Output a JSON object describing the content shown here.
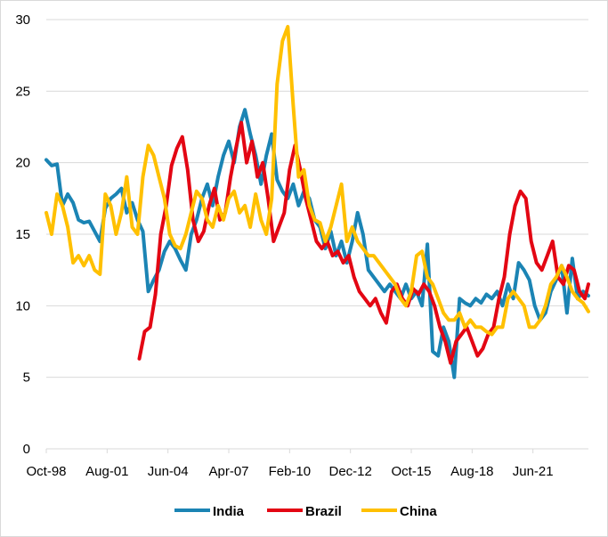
{
  "chart_data": {
    "type": "line",
    "title": "",
    "xlabel": "",
    "ylabel": "",
    "ylim": [
      0,
      30
    ],
    "yticks": [
      0,
      5,
      10,
      15,
      20,
      25,
      30
    ],
    "xlim": [
      "Oct-98",
      "Jan-24"
    ],
    "xticks": [
      "Oct-98",
      "Aug-01",
      "Jun-04",
      "Apr-07",
      "Feb-10",
      "Dec-12",
      "Oct-15",
      "Aug-18",
      "Jun-21"
    ],
    "grid": "horizontal",
    "legend_position": "bottom",
    "series": [
      {
        "name": "India",
        "color": "#1B84B4",
        "points": [
          [
            "Oct-98",
            20.2
          ],
          [
            "Jan-99",
            19.8
          ],
          [
            "Apr-99",
            19.9
          ],
          [
            "Jul-99",
            17.0
          ],
          [
            "Oct-99",
            17.8
          ],
          [
            "Jan-00",
            17.2
          ],
          [
            "Apr-00",
            16.0
          ],
          [
            "Jul-00",
            15.8
          ],
          [
            "Oct-00",
            15.9
          ],
          [
            "Jan-01",
            15.2
          ],
          [
            "Apr-01",
            14.5
          ],
          [
            "Jul-01",
            16.8
          ],
          [
            "Oct-01",
            17.5
          ],
          [
            "Jan-02",
            17.8
          ],
          [
            "Apr-02",
            18.2
          ],
          [
            "Jul-02",
            16.5
          ],
          [
            "Oct-02",
            17.2
          ],
          [
            "Jan-03",
            16.0
          ],
          [
            "Apr-03",
            15.2
          ],
          [
            "Jul-03",
            11.0
          ],
          [
            "Oct-03",
            11.8
          ],
          [
            "Jan-04",
            12.5
          ],
          [
            "Apr-04",
            13.8
          ],
          [
            "Jul-04",
            14.5
          ],
          [
            "Oct-04",
            14.0
          ],
          [
            "Jan-05",
            13.2
          ],
          [
            "Apr-05",
            12.5
          ],
          [
            "Jul-05",
            15.0
          ],
          [
            "Oct-05",
            16.0
          ],
          [
            "Jan-06",
            17.5
          ],
          [
            "Apr-06",
            18.5
          ],
          [
            "Jul-06",
            17.0
          ],
          [
            "Oct-06",
            19.0
          ],
          [
            "Jan-07",
            20.5
          ],
          [
            "Apr-07",
            21.5
          ],
          [
            "Jul-07",
            20.0
          ],
          [
            "Oct-07",
            22.5
          ],
          [
            "Jan-08",
            23.7
          ],
          [
            "Apr-08",
            22.0
          ],
          [
            "Jul-08",
            20.5
          ],
          [
            "Oct-08",
            18.5
          ],
          [
            "Jan-09",
            20.5
          ],
          [
            "Apr-09",
            22.0
          ],
          [
            "Jul-09",
            18.8
          ],
          [
            "Oct-09",
            18.0
          ],
          [
            "Jan-10",
            17.5
          ],
          [
            "Apr-10",
            18.5
          ],
          [
            "Jul-10",
            17.0
          ],
          [
            "Oct-10",
            18.0
          ],
          [
            "Jan-11",
            17.5
          ],
          [
            "Apr-11",
            16.0
          ],
          [
            "Jul-11",
            15.5
          ],
          [
            "Oct-11",
            14.0
          ],
          [
            "Jan-12",
            15.2
          ],
          [
            "Apr-12",
            13.5
          ],
          [
            "Jul-12",
            14.5
          ],
          [
            "Oct-12",
            13.0
          ],
          [
            "Jan-13",
            14.5
          ],
          [
            "Apr-13",
            16.5
          ],
          [
            "Jul-13",
            15.0
          ],
          [
            "Oct-13",
            12.5
          ],
          [
            "Jan-14",
            12.0
          ],
          [
            "Apr-14",
            11.5
          ],
          [
            "Jul-14",
            11.0
          ],
          [
            "Oct-14",
            11.5
          ],
          [
            "Jan-15",
            11.0
          ],
          [
            "Apr-15",
            10.5
          ],
          [
            "Jul-15",
            11.5
          ],
          [
            "Oct-15",
            10.5
          ],
          [
            "Jan-16",
            11.0
          ],
          [
            "Apr-16",
            10.0
          ],
          [
            "Jul-16",
            14.3
          ],
          [
            "Oct-16",
            6.8
          ],
          [
            "Jan-17",
            6.5
          ],
          [
            "Apr-17",
            8.5
          ],
          [
            "Jul-17",
            7.5
          ],
          [
            "Oct-17",
            5.0
          ],
          [
            "Jan-18",
            10.5
          ],
          [
            "Apr-18",
            10.2
          ],
          [
            "Jul-18",
            10.0
          ],
          [
            "Oct-18",
            10.5
          ],
          [
            "Jan-19",
            10.2
          ],
          [
            "Apr-19",
            10.8
          ],
          [
            "Jul-19",
            10.5
          ],
          [
            "Oct-19",
            11.0
          ],
          [
            "Jan-20",
            10.0
          ],
          [
            "Apr-20",
            11.5
          ],
          [
            "Jul-20",
            10.5
          ],
          [
            "Oct-20",
            13.0
          ],
          [
            "Jan-21",
            12.5
          ],
          [
            "Apr-21",
            11.8
          ],
          [
            "Jul-21",
            10.0
          ],
          [
            "Oct-21",
            9.0
          ],
          [
            "Jan-22",
            9.5
          ],
          [
            "Apr-22",
            11.0
          ],
          [
            "Jul-22",
            11.8
          ],
          [
            "Oct-22",
            12.8
          ],
          [
            "Jan-23",
            9.5
          ],
          [
            "Apr-23",
            13.3
          ],
          [
            "Jul-23",
            10.5
          ],
          [
            "Oct-23",
            11.0
          ],
          [
            "Jan-24",
            10.7
          ]
        ]
      },
      {
        "name": "Brazil",
        "color": "#E30613",
        "points": [
          [
            "Feb-03",
            6.3
          ],
          [
            "May-03",
            8.2
          ],
          [
            "Aug-03",
            8.5
          ],
          [
            "Nov-03",
            10.8
          ],
          [
            "Feb-04",
            15.0
          ],
          [
            "May-04",
            17.0
          ],
          [
            "Aug-04",
            19.8
          ],
          [
            "Nov-04",
            21.0
          ],
          [
            "Feb-05",
            21.8
          ],
          [
            "May-05",
            19.5
          ],
          [
            "Aug-05",
            16.0
          ],
          [
            "Nov-05",
            14.5
          ],
          [
            "Feb-06",
            15.2
          ],
          [
            "May-06",
            17.0
          ],
          [
            "Aug-06",
            18.2
          ],
          [
            "Nov-06",
            16.0
          ],
          [
            "Feb-07",
            16.5
          ],
          [
            "May-07",
            19.0
          ],
          [
            "Aug-07",
            21.0
          ],
          [
            "Nov-07",
            22.8
          ],
          [
            "Feb-08",
            20.0
          ],
          [
            "May-08",
            21.5
          ],
          [
            "Aug-08",
            19.0
          ],
          [
            "Nov-08",
            20.0
          ],
          [
            "Feb-09",
            17.5
          ],
          [
            "May-09",
            14.5
          ],
          [
            "Aug-09",
            15.5
          ],
          [
            "Nov-09",
            16.5
          ],
          [
            "Feb-10",
            19.5
          ],
          [
            "May-10",
            21.2
          ],
          [
            "Aug-10",
            19.5
          ],
          [
            "Nov-10",
            17.5
          ],
          [
            "Feb-11",
            16.0
          ],
          [
            "May-11",
            14.5
          ],
          [
            "Aug-11",
            14.0
          ],
          [
            "Nov-11",
            14.5
          ],
          [
            "Feb-12",
            13.5
          ],
          [
            "May-12",
            13.8
          ],
          [
            "Aug-12",
            13.0
          ],
          [
            "Nov-12",
            13.5
          ],
          [
            "Feb-13",
            12.0
          ],
          [
            "May-13",
            11.0
          ],
          [
            "Aug-13",
            10.5
          ],
          [
            "Nov-13",
            10.0
          ],
          [
            "Feb-14",
            10.5
          ],
          [
            "May-14",
            9.5
          ],
          [
            "Aug-14",
            8.8
          ],
          [
            "Nov-14",
            11.0
          ],
          [
            "Feb-15",
            11.5
          ],
          [
            "May-15",
            10.5
          ],
          [
            "Aug-15",
            10.0
          ],
          [
            "Nov-15",
            11.2
          ],
          [
            "Feb-16",
            10.8
          ],
          [
            "May-16",
            11.5
          ],
          [
            "Aug-16",
            11.0
          ],
          [
            "Nov-16",
            10.0
          ],
          [
            "Feb-17",
            8.5
          ],
          [
            "May-17",
            7.5
          ],
          [
            "Aug-17",
            6.0
          ],
          [
            "Nov-17",
            7.5
          ],
          [
            "Feb-18",
            8.0
          ],
          [
            "May-18",
            8.5
          ],
          [
            "Aug-18",
            7.5
          ],
          [
            "Nov-18",
            6.5
          ],
          [
            "Feb-19",
            7.0
          ],
          [
            "May-19",
            8.0
          ],
          [
            "Aug-19",
            8.5
          ],
          [
            "Nov-19",
            10.5
          ],
          [
            "Feb-20",
            12.0
          ],
          [
            "May-20",
            15.0
          ],
          [
            "Aug-20",
            17.0
          ],
          [
            "Nov-20",
            18.0
          ],
          [
            "Feb-21",
            17.5
          ],
          [
            "May-21",
            14.5
          ],
          [
            "Aug-21",
            13.0
          ],
          [
            "Nov-21",
            12.5
          ],
          [
            "Feb-22",
            13.5
          ],
          [
            "May-22",
            14.5
          ],
          [
            "Aug-22",
            12.0
          ],
          [
            "Nov-22",
            11.5
          ],
          [
            "Feb-23",
            12.8
          ],
          [
            "May-23",
            12.5
          ],
          [
            "Aug-23",
            11.0
          ],
          [
            "Nov-23",
            10.5
          ],
          [
            "Jan-24",
            11.5
          ]
        ]
      },
      {
        "name": "China",
        "color": "#FFC000",
        "points": [
          [
            "Oct-98",
            16.5
          ],
          [
            "Jan-99",
            15.0
          ],
          [
            "Apr-99",
            17.8
          ],
          [
            "Jul-99",
            17.0
          ],
          [
            "Oct-99",
            15.5
          ],
          [
            "Jan-00",
            13.0
          ],
          [
            "Apr-00",
            13.5
          ],
          [
            "Jul-00",
            12.8
          ],
          [
            "Oct-00",
            13.5
          ],
          [
            "Jan-01",
            12.5
          ],
          [
            "Apr-01",
            12.2
          ],
          [
            "Jul-01",
            17.8
          ],
          [
            "Oct-01",
            17.0
          ],
          [
            "Jan-02",
            15.0
          ],
          [
            "Apr-02",
            16.5
          ],
          [
            "Jul-02",
            19.0
          ],
          [
            "Oct-02",
            15.5
          ],
          [
            "Jan-03",
            15.0
          ],
          [
            "Apr-03",
            19.0
          ],
          [
            "Jul-03",
            21.2
          ],
          [
            "Oct-03",
            20.5
          ],
          [
            "Jan-04",
            19.0
          ],
          [
            "Apr-04",
            17.5
          ],
          [
            "Jul-04",
            15.0
          ],
          [
            "Oct-04",
            14.2
          ],
          [
            "Jan-05",
            14.0
          ],
          [
            "Apr-05",
            15.0
          ],
          [
            "Jul-05",
            16.5
          ],
          [
            "Oct-05",
            18.0
          ],
          [
            "Jan-06",
            17.5
          ],
          [
            "Apr-06",
            16.0
          ],
          [
            "Jul-06",
            15.5
          ],
          [
            "Oct-06",
            17.0
          ],
          [
            "Jan-07",
            16.0
          ],
          [
            "Apr-07",
            17.5
          ],
          [
            "Jul-07",
            18.0
          ],
          [
            "Oct-07",
            16.5
          ],
          [
            "Jan-08",
            17.0
          ],
          [
            "Apr-08",
            15.5
          ],
          [
            "Jul-08",
            17.8
          ],
          [
            "Oct-08",
            16.0
          ],
          [
            "Jan-09",
            15.0
          ],
          [
            "Apr-09",
            17.5
          ],
          [
            "Jul-09",
            25.5
          ],
          [
            "Oct-09",
            28.5
          ],
          [
            "Jan-10",
            29.5
          ],
          [
            "Apr-10",
            24.0
          ],
          [
            "Jul-10",
            19.0
          ],
          [
            "Oct-10",
            19.5
          ],
          [
            "Jan-11",
            17.0
          ],
          [
            "Apr-11",
            16.0
          ],
          [
            "Jul-11",
            15.8
          ],
          [
            "Oct-11",
            14.5
          ],
          [
            "Jan-12",
            15.5
          ],
          [
            "Apr-12",
            17.0
          ],
          [
            "Jul-12",
            18.5
          ],
          [
            "Oct-12",
            14.5
          ],
          [
            "Jan-13",
            15.5
          ],
          [
            "Apr-13",
            14.5
          ],
          [
            "Jul-13",
            14.0
          ],
          [
            "Oct-13",
            13.5
          ],
          [
            "Jan-14",
            13.5
          ],
          [
            "Apr-14",
            13.0
          ],
          [
            "Jul-14",
            12.5
          ],
          [
            "Oct-14",
            12.0
          ],
          [
            "Jan-15",
            11.5
          ],
          [
            "Apr-15",
            10.5
          ],
          [
            "Jul-15",
            10.0
          ],
          [
            "Oct-15",
            11.0
          ],
          [
            "Jan-16",
            13.5
          ],
          [
            "Apr-16",
            13.8
          ],
          [
            "Jul-16",
            12.0
          ],
          [
            "Oct-16",
            11.5
          ],
          [
            "Jan-17",
            10.5
          ],
          [
            "Apr-17",
            9.5
          ],
          [
            "Jul-17",
            9.0
          ],
          [
            "Oct-17",
            9.0
          ],
          [
            "Jan-18",
            9.5
          ],
          [
            "Apr-18",
            8.5
          ],
          [
            "Jul-18",
            9.0
          ],
          [
            "Oct-18",
            8.5
          ],
          [
            "Jan-19",
            8.5
          ],
          [
            "Apr-19",
            8.2
          ],
          [
            "Jul-19",
            8.0
          ],
          [
            "Oct-19",
            8.5
          ],
          [
            "Jan-20",
            8.5
          ],
          [
            "Apr-20",
            10.5
          ],
          [
            "Jul-20",
            11.0
          ],
          [
            "Oct-20",
            10.5
          ],
          [
            "Jan-21",
            10.0
          ],
          [
            "Apr-21",
            8.5
          ],
          [
            "Jul-21",
            8.5
          ],
          [
            "Oct-21",
            9.0
          ],
          [
            "Jan-22",
            10.0
          ],
          [
            "Apr-22",
            11.5
          ],
          [
            "Jul-22",
            12.0
          ],
          [
            "Oct-22",
            12.8
          ],
          [
            "Jan-23",
            12.0
          ],
          [
            "Apr-23",
            11.0
          ],
          [
            "Jul-23",
            10.5
          ],
          [
            "Oct-23",
            10.2
          ],
          [
            "Jan-24",
            9.6
          ]
        ]
      }
    ]
  }
}
